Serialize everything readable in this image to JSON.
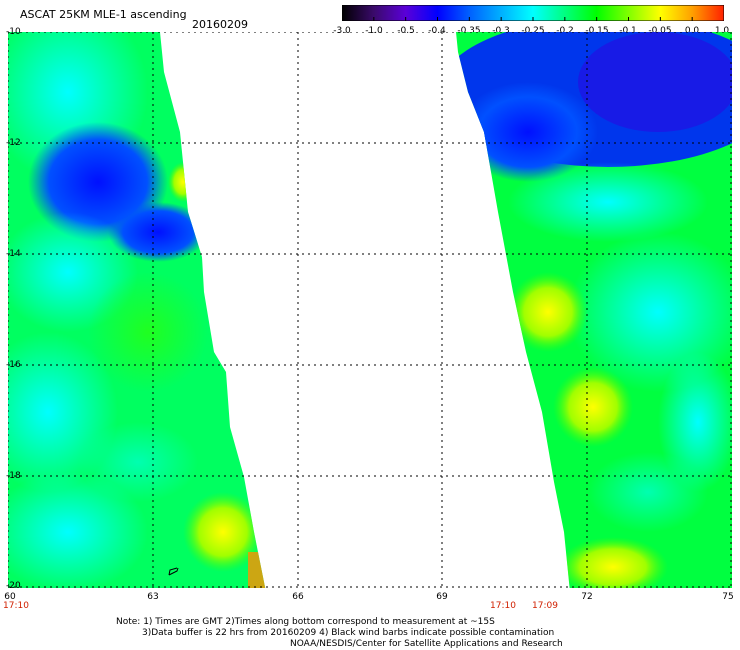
{
  "header": {
    "title": "ASCAT 25KM MLE-1 ascending",
    "date": "20160209"
  },
  "colorbar": {
    "labels": [
      "-3.0",
      "-1.0",
      "-0.5",
      "-0.4",
      "-0.35",
      "-0.3",
      "-0.25",
      "-0.2",
      "-0.15",
      "-0.1",
      "-0.05",
      "0.0",
      "1.0"
    ],
    "colors": [
      "#000000",
      "#3a0a6a",
      "#5a00d8",
      "#0000ff",
      "#0060ff",
      "#00b0ff",
      "#00ffff",
      "#00ff80",
      "#00ff00",
      "#80ff00",
      "#ffff00",
      "#ffa000",
      "#ff2000"
    ]
  },
  "axes": {
    "lat_labels": [
      "-10",
      "-12",
      "-14",
      "-16",
      "-18",
      "-20"
    ],
    "lon_labels": [
      "60",
      "63",
      "66",
      "69",
      "72",
      "75"
    ],
    "lat_range": [
      -20,
      -10
    ],
    "lon_range": [
      60,
      75
    ]
  },
  "times": {
    "left_pass": "17:10",
    "right_pass_start": "17:10",
    "right_pass_end": "17:09"
  },
  "notes": {
    "line1": "Note: 1) Times are GMT 2)Times along bottom correspond to measurement at ~15S",
    "line2": "3)Data buffer is 22 hrs from 20160209 4) Black wind barbs indicate possible contamination",
    "line3": "NOAA/NESDIS/Center for Satellite Applications and Research"
  }
}
